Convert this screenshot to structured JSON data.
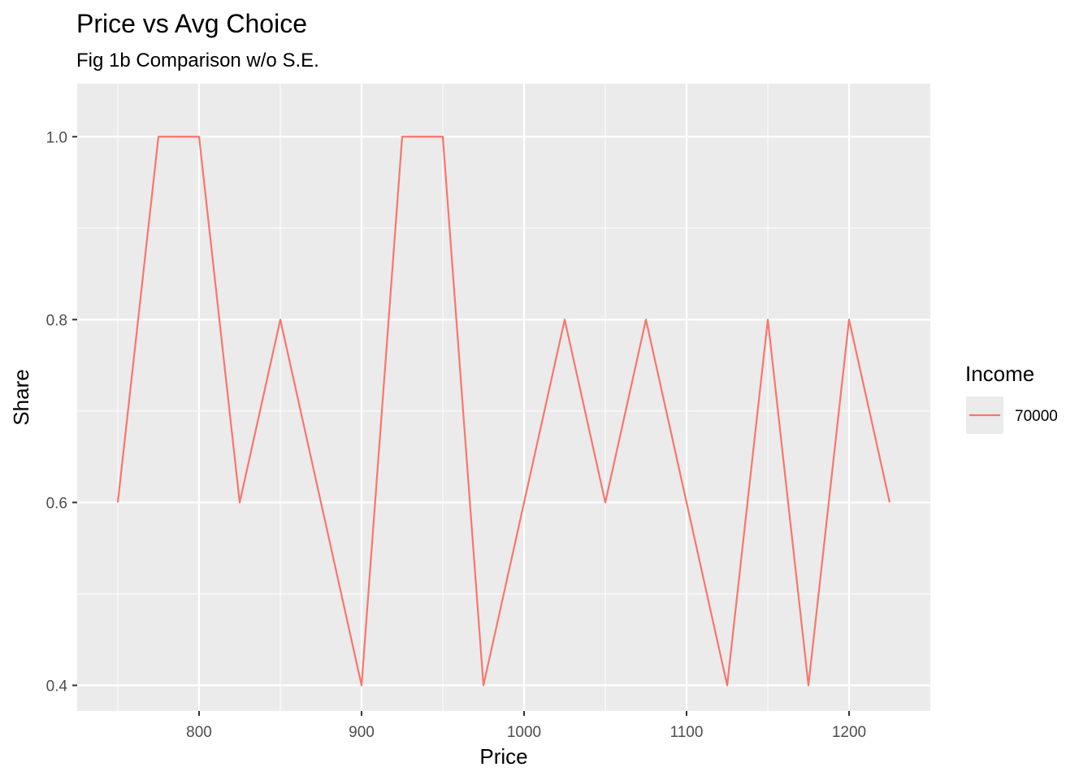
{
  "chart_data": {
    "type": "line",
    "title": "Price vs Avg Choice",
    "subtitle": "Fig 1b Comparison w/o S.E.",
    "xlabel": "Price",
    "ylabel": "Share",
    "xlim": [
      725,
      1250
    ],
    "ylim": [
      0.372,
      1.058
    ],
    "x_ticks": [
      800,
      900,
      1000,
      1100,
      1200
    ],
    "x_tick_labels": [
      "800",
      "900",
      "1000",
      "1100",
      "1200"
    ],
    "y_ticks": [
      0.4,
      0.6,
      0.8,
      1.0
    ],
    "y_tick_labels": [
      "0.4",
      "0.6",
      "0.8",
      "1.0"
    ],
    "grid": true,
    "legend": {
      "title": "Income",
      "placement": "right"
    },
    "series": [
      {
        "name": "70000",
        "color": "#F8766D",
        "x": [
          750,
          775,
          800,
          825,
          850,
          900,
          925,
          950,
          975,
          1025,
          1050,
          1075,
          1125,
          1150,
          1175,
          1200,
          1225
        ],
        "y": [
          0.6,
          1.0,
          1.0,
          0.6,
          0.8,
          0.4,
          1.0,
          1.0,
          0.4,
          0.8,
          0.6,
          0.8,
          0.4,
          0.8,
          0.4,
          0.8,
          0.6
        ]
      }
    ]
  }
}
